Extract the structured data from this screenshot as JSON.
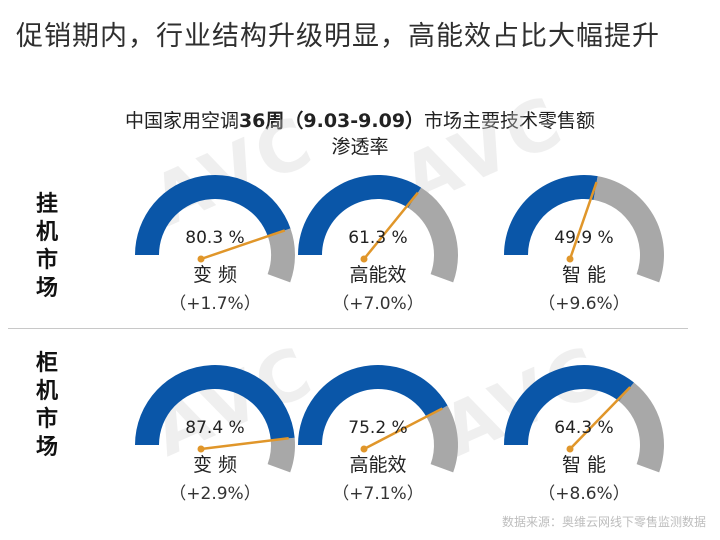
{
  "headline": "促销期内，行业结构升级明显，高能效占比大幅提升",
  "chart_title": {
    "pre": "中国家用空调",
    "bold": "36周（9.03-9.09）",
    "post": "市场主要技术零售额",
    "line2": "渗透率"
  },
  "watermark": "AVC",
  "source": "数据来源：奥维云网线下零售监测数据",
  "colors": {
    "fill": "#0a56a8",
    "remainder": "#a8a8a8",
    "needle": "#e0962a"
  },
  "chart_data": [
    {
      "type": "gauge",
      "row": "挂机市场",
      "row_chars": [
        "挂",
        "机",
        "市",
        "场"
      ],
      "items": [
        {
          "label": "变 频",
          "value": 80.3,
          "value_text": "80.3 %",
          "change": "（+1.7%）"
        },
        {
          "label": "高能效",
          "value": 61.3,
          "value_text": "61.3 %",
          "change": "（+7.0%）"
        },
        {
          "label": "智 能",
          "value": 49.9,
          "value_text": "49.9 %",
          "change": "（+9.6%）"
        }
      ]
    },
    {
      "type": "gauge",
      "row": "柜机市场",
      "row_chars": [
        "柜",
        "机",
        "市",
        "场"
      ],
      "items": [
        {
          "label": "变 频",
          "value": 87.4,
          "value_text": "87.4 %",
          "change": "（+2.9%）"
        },
        {
          "label": "高能效",
          "value": 75.2,
          "value_text": "75.2 %",
          "change": "（+7.1%）"
        },
        {
          "label": "智 能",
          "value": 64.3,
          "value_text": "64.3 %",
          "change": "（+8.6%）"
        }
      ]
    }
  ]
}
